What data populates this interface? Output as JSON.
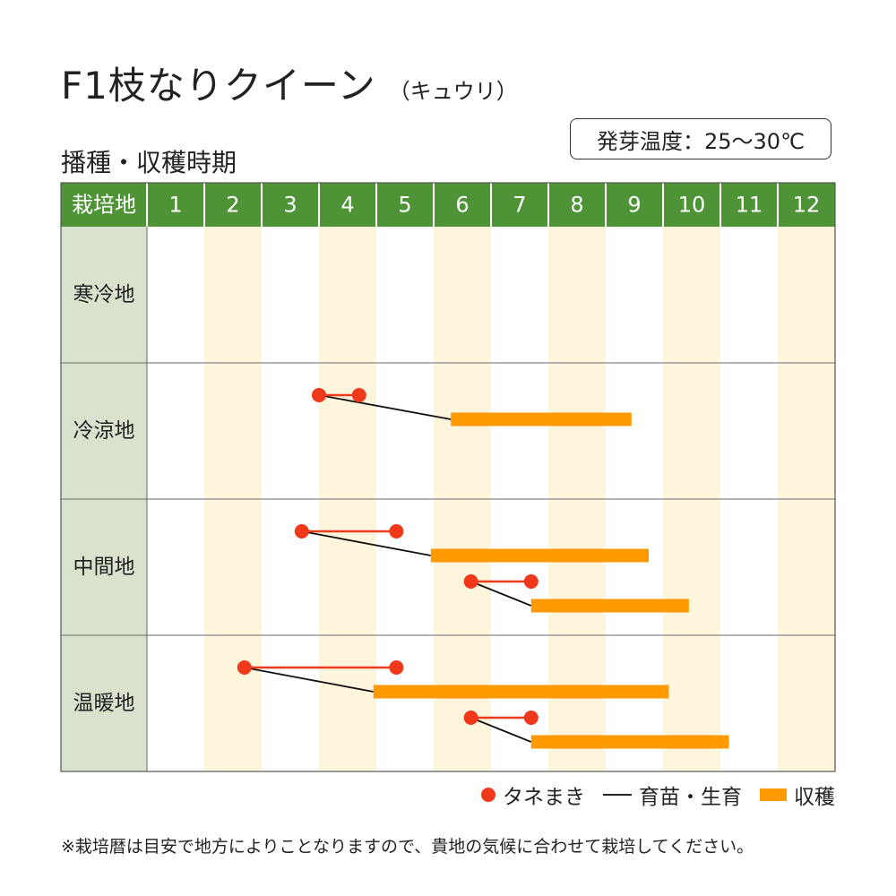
{
  "title": {
    "main": "F1枝なりクイーン",
    "sub": "（キュウリ）"
  },
  "section_title": "播種・収穫時期",
  "temperature_note": "発芽温度：25～30℃",
  "legend": {
    "sowing": "タネまき",
    "nursery": "育苗・生育",
    "harvest": "収穫"
  },
  "footnote": "※栽培暦は目安で地方によりことなりますので、貴地の気候に合わせて栽培してください。",
  "colors": {
    "header_green": "#4e9436",
    "region_cell": "#d8e2cc",
    "stripe": "#fdf5dc",
    "sowing_red": "#f0381a",
    "harvest_orange": "#ff9900",
    "grid_line": "#b9b9b9"
  },
  "chart_data": {
    "type": "table",
    "header_label": "栽培地",
    "months": [
      "1",
      "2",
      "3",
      "4",
      "5",
      "6",
      "7",
      "8",
      "9",
      "10",
      "11",
      "12"
    ],
    "regions": [
      {
        "name": "寒冷地",
        "schedules": []
      },
      {
        "name": "冷涼地",
        "schedules": [
          {
            "sowing": [
              4.0,
              4.7
            ],
            "harvest": [
              6.3,
              9.45
            ]
          }
        ]
      },
      {
        "name": "中間地",
        "schedules": [
          {
            "sowing": [
              3.7,
              5.35
            ],
            "harvest": [
              5.95,
              9.75
            ]
          },
          {
            "sowing": [
              6.65,
              7.7
            ],
            "harvest": [
              7.7,
              10.45
            ]
          }
        ]
      },
      {
        "name": "温暖地",
        "schedules": [
          {
            "sowing": [
              2.7,
              5.35
            ],
            "harvest": [
              4.95,
              10.1
            ]
          },
          {
            "sowing": [
              6.65,
              7.7
            ],
            "harvest": [
              7.7,
              11.15
            ]
          }
        ]
      }
    ]
  }
}
